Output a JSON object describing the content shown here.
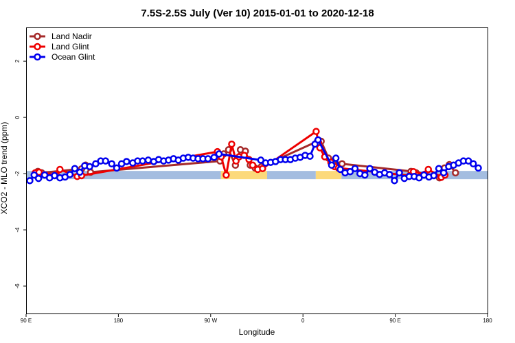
{
  "chart_data": {
    "type": "line",
    "title": "7.5S-2.5S July (Ver 10)   2015-01-01 to 2020-12-18",
    "xlabel": "Longitude",
    "ylabel": "XCO2 - MLO trend (ppm)",
    "xlim": [
      0,
      360
    ],
    "ylim": [
      -7,
      3.2
    ],
    "x_ticks": [
      {
        "value": 0,
        "label": "90 E"
      },
      {
        "value": 72,
        "label": "180"
      },
      {
        "value": 144,
        "label": "90 W"
      },
      {
        "value": 216,
        "label": "0"
      },
      {
        "value": 288,
        "label": "90 E"
      },
      {
        "value": 360,
        "label": "180"
      }
    ],
    "y_ticks": [
      {
        "value": 2,
        "label": "2"
      },
      {
        "value": 0,
        "label": "0"
      },
      {
        "value": -2,
        "label": "-2"
      },
      {
        "value": -4,
        "label": "-4"
      },
      {
        "value": -6,
        "label": "-6"
      }
    ],
    "grid": false,
    "legend_position": "top-left",
    "surface_band": {
      "y": -2.05,
      "segments": [
        {
          "kind": "ocean",
          "x": [
            0,
            152
          ],
          "color": "#a4bde0"
        },
        {
          "kind": "land",
          "x": [
            152,
            188
          ],
          "color": "#fcd97a"
        },
        {
          "kind": "ocean",
          "x": [
            188,
            226
          ],
          "color": "#a4bde0"
        },
        {
          "kind": "land",
          "x": [
            226,
            246
          ],
          "color": "#fcd97a"
        },
        {
          "kind": "ocean",
          "x": [
            246,
            360
          ],
          "color": "#a4bde0"
        }
      ]
    },
    "series": [
      {
        "name": "Land Nadir",
        "color": "#a52a2a",
        "points": [
          {
            "x": 9.2,
            "y": -1.92
          },
          {
            "x": 12.1,
            "y": -1.97
          },
          {
            "x": 43.3,
            "y": -1.83
          },
          {
            "x": 46.4,
            "y": -1.7
          },
          {
            "x": 50.3,
            "y": -1.95
          },
          {
            "x": 151.3,
            "y": -1.55
          },
          {
            "x": 154.2,
            "y": -1.3
          },
          {
            "x": 158,
            "y": -1.15
          },
          {
            "x": 163.3,
            "y": -1.7
          },
          {
            "x": 167.2,
            "y": -1.15
          },
          {
            "x": 171.1,
            "y": -1.2
          },
          {
            "x": 174.9,
            "y": -1.7
          },
          {
            "x": 178.7,
            "y": -1.8
          },
          {
            "x": 183.6,
            "y": -1.75
          },
          {
            "x": 227.3,
            "y": -0.85
          },
          {
            "x": 230.2,
            "y": -0.85
          },
          {
            "x": 235.9,
            "y": -1.45
          },
          {
            "x": 239.8,
            "y": -1.55
          },
          {
            "x": 243.6,
            "y": -1.7
          },
          {
            "x": 246.5,
            "y": -1.65
          },
          {
            "x": 300.3,
            "y": -1.92
          },
          {
            "x": 304.2,
            "y": -1.97
          },
          {
            "x": 322.5,
            "y": -2.15
          },
          {
            "x": 326.4,
            "y": -1.8
          },
          {
            "x": 330.2,
            "y": -1.68
          },
          {
            "x": 335,
            "y": -1.97
          }
        ]
      },
      {
        "name": "Land Glint",
        "color": "#ee0000",
        "points": [
          {
            "x": 7.2,
            "y": -1.97
          },
          {
            "x": 10.1,
            "y": -1.95
          },
          {
            "x": 23.6,
            "y": -2.05
          },
          {
            "x": 26.4,
            "y": -1.85
          },
          {
            "x": 39.9,
            "y": -2.1
          },
          {
            "x": 43.3,
            "y": -2.07
          },
          {
            "x": 149.3,
            "y": -1.22
          },
          {
            "x": 152.2,
            "y": -1.4
          },
          {
            "x": 156.1,
            "y": -2.05
          },
          {
            "x": 160.4,
            "y": -0.95
          },
          {
            "x": 163.8,
            "y": -1.55
          },
          {
            "x": 166.2,
            "y": -1.4
          },
          {
            "x": 170.1,
            "y": -1.35
          },
          {
            "x": 173.9,
            "y": -1.5
          },
          {
            "x": 176.8,
            "y": -1.7
          },
          {
            "x": 180.7,
            "y": -1.85
          },
          {
            "x": 184.5,
            "y": -1.82
          },
          {
            "x": 226.3,
            "y": -0.5
          },
          {
            "x": 228.2,
            "y": -0.9
          },
          {
            "x": 229.2,
            "y": -1.08
          },
          {
            "x": 233,
            "y": -1.4
          },
          {
            "x": 237.8,
            "y": -1.6
          },
          {
            "x": 240.7,
            "y": -1.75
          },
          {
            "x": 243.6,
            "y": -1.8
          },
          {
            "x": 299.4,
            "y": -2.07
          },
          {
            "x": 302.2,
            "y": -1.93
          },
          {
            "x": 311.3,
            "y": -2.02
          },
          {
            "x": 313.8,
            "y": -1.85
          },
          {
            "x": 323.9,
            "y": -2.13
          },
          {
            "x": 326.8,
            "y": -2.05
          }
        ]
      },
      {
        "name": "Ocean Glint",
        "color": "#0000ee",
        "points": [
          {
            "x": 2.9,
            "y": -2.25
          },
          {
            "x": 6.3,
            "y": -2.05
          },
          {
            "x": 9.7,
            "y": -2.17
          },
          {
            "x": 14.5,
            "y": -2.05
          },
          {
            "x": 18.3,
            "y": -2.15
          },
          {
            "x": 22.2,
            "y": -2.07
          },
          {
            "x": 26.4,
            "y": -2.15
          },
          {
            "x": 30.4,
            "y": -2.12
          },
          {
            "x": 34.2,
            "y": -2.03
          },
          {
            "x": 38,
            "y": -1.82
          },
          {
            "x": 41.9,
            "y": -1.95
          },
          {
            "x": 45.7,
            "y": -1.72
          },
          {
            "x": 49.6,
            "y": -1.75
          },
          {
            "x": 54.3,
            "y": -1.65
          },
          {
            "x": 58.2,
            "y": -1.55
          },
          {
            "x": 62,
            "y": -1.55
          },
          {
            "x": 66.8,
            "y": -1.65
          },
          {
            "x": 70.7,
            "y": -1.8
          },
          {
            "x": 74.5,
            "y": -1.65
          },
          {
            "x": 78.4,
            "y": -1.57
          },
          {
            "x": 83.2,
            "y": -1.62
          },
          {
            "x": 87,
            "y": -1.55
          },
          {
            "x": 90.9,
            "y": -1.55
          },
          {
            "x": 95.3,
            "y": -1.52
          },
          {
            "x": 99.6,
            "y": -1.57
          },
          {
            "x": 103.4,
            "y": -1.5
          },
          {
            "x": 107.3,
            "y": -1.55
          },
          {
            "x": 111.1,
            "y": -1.52
          },
          {
            "x": 115,
            "y": -1.47
          },
          {
            "x": 118.8,
            "y": -1.52
          },
          {
            "x": 122.6,
            "y": -1.45
          },
          {
            "x": 126.5,
            "y": -1.42
          },
          {
            "x": 130.3,
            "y": -1.45
          },
          {
            "x": 134.2,
            "y": -1.47
          },
          {
            "x": 138,
            "y": -1.47
          },
          {
            "x": 141.9,
            "y": -1.47
          },
          {
            "x": 146.7,
            "y": -1.42
          },
          {
            "x": 150.5,
            "y": -1.3
          },
          {
            "x": 183.1,
            "y": -1.52
          },
          {
            "x": 186.9,
            "y": -1.62
          },
          {
            "x": 190.8,
            "y": -1.6
          },
          {
            "x": 194.6,
            "y": -1.57
          },
          {
            "x": 198.5,
            "y": -1.5
          },
          {
            "x": 202.3,
            "y": -1.5
          },
          {
            "x": 206.2,
            "y": -1.5
          },
          {
            "x": 210,
            "y": -1.45
          },
          {
            "x": 213.8,
            "y": -1.42
          },
          {
            "x": 217.7,
            "y": -1.35
          },
          {
            "x": 221.5,
            "y": -1.38
          },
          {
            "x": 225.4,
            "y": -0.95
          },
          {
            "x": 227.8,
            "y": -0.8
          },
          {
            "x": 238.4,
            "y": -1.7
          },
          {
            "x": 241.7,
            "y": -1.45
          },
          {
            "x": 245.1,
            "y": -1.85
          },
          {
            "x": 248.9,
            "y": -1.97
          },
          {
            "x": 252.8,
            "y": -1.93
          },
          {
            "x": 256.6,
            "y": -1.82
          },
          {
            "x": 260.5,
            "y": -2.0
          },
          {
            "x": 264.3,
            "y": -2.05
          },
          {
            "x": 268.2,
            "y": -1.82
          },
          {
            "x": 272,
            "y": -1.95
          },
          {
            "x": 275.8,
            "y": -2.03
          },
          {
            "x": 279.7,
            "y": -1.97
          },
          {
            "x": 283.5,
            "y": -2.03
          },
          {
            "x": 287.4,
            "y": -2.25
          },
          {
            "x": 291.2,
            "y": -1.97
          },
          {
            "x": 295.1,
            "y": -2.17
          },
          {
            "x": 298.9,
            "y": -2.1
          },
          {
            "x": 302.8,
            "y": -2.1
          },
          {
            "x": 306.6,
            "y": -2.15
          },
          {
            "x": 310.4,
            "y": -2.05
          },
          {
            "x": 314.3,
            "y": -2.12
          },
          {
            "x": 318.1,
            "y": -2.07
          },
          {
            "x": 322,
            "y": -1.82
          },
          {
            "x": 325.8,
            "y": -1.97
          },
          {
            "x": 329.7,
            "y": -1.75
          },
          {
            "x": 333.5,
            "y": -1.7
          },
          {
            "x": 337.4,
            "y": -1.62
          },
          {
            "x": 341.2,
            "y": -1.55
          },
          {
            "x": 345.1,
            "y": -1.55
          },
          {
            "x": 348.9,
            "y": -1.65
          },
          {
            "x": 352.8,
            "y": -1.8
          }
        ]
      }
    ]
  }
}
